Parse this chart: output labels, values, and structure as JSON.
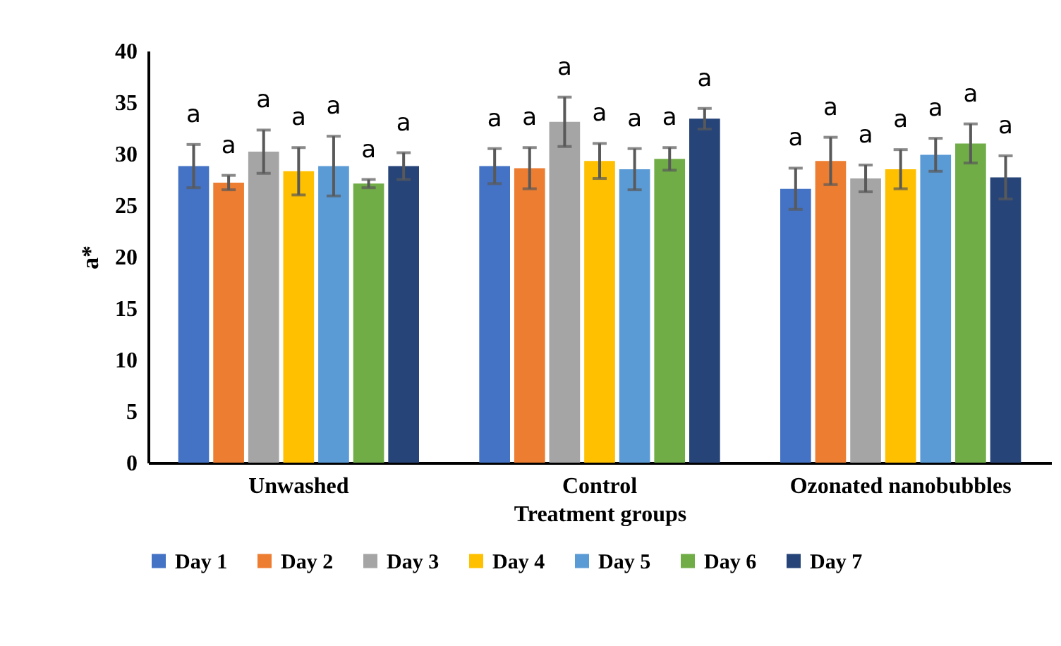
{
  "chart_data": {
    "type": "bar",
    "xlabel": "Treatment groups",
    "ylabel": "a*",
    "categories": [
      "Unwashed",
      "Control",
      "Ozonated nanobubbles"
    ],
    "ylim": [
      0,
      40
    ],
    "yticks": [
      0,
      5,
      10,
      15,
      20,
      25,
      30,
      35,
      40
    ],
    "grid": false,
    "legend": "bottom",
    "series": [
      {
        "name": "Day 1",
        "color": "#4472c4",
        "values": [
          28.8,
          28.8,
          26.6
        ],
        "errors": [
          2.1,
          1.7,
          2.0
        ],
        "value_labels": [
          "a",
          "a",
          "a"
        ]
      },
      {
        "name": "Day 2",
        "color": "#ed7d31",
        "values": [
          27.2,
          28.6,
          29.3
        ],
        "errors": [
          0.7,
          2.0,
          2.3
        ],
        "value_labels": [
          "a",
          "a",
          "a"
        ]
      },
      {
        "name": "Day 3",
        "color": "#a5a5a5",
        "values": [
          30.2,
          33.1,
          27.6
        ],
        "errors": [
          2.1,
          2.4,
          1.3
        ],
        "value_labels": [
          "a",
          "a",
          "a"
        ]
      },
      {
        "name": "Day 4",
        "color": "#ffc000",
        "values": [
          28.3,
          29.3,
          28.5
        ],
        "errors": [
          2.3,
          1.7,
          1.9
        ],
        "value_labels": [
          "a",
          "a",
          "a"
        ]
      },
      {
        "name": "Day 5",
        "color": "#5b9bd5",
        "values": [
          28.8,
          28.5,
          29.9
        ],
        "errors": [
          2.9,
          2.0,
          1.6
        ],
        "value_labels": [
          "a",
          "a",
          "a"
        ]
      },
      {
        "name": "Day 6",
        "color": "#70ad47",
        "values": [
          27.1,
          29.5,
          31.0
        ],
        "errors": [
          0.4,
          1.1,
          1.9
        ],
        "value_labels": [
          "a",
          "a",
          "a"
        ]
      },
      {
        "name": "Day 7",
        "color": "#264478",
        "values": [
          28.8,
          33.4,
          27.7
        ],
        "errors": [
          1.3,
          1.0,
          2.1
        ],
        "value_labels": [
          "a",
          "a",
          "a"
        ]
      }
    ]
  }
}
